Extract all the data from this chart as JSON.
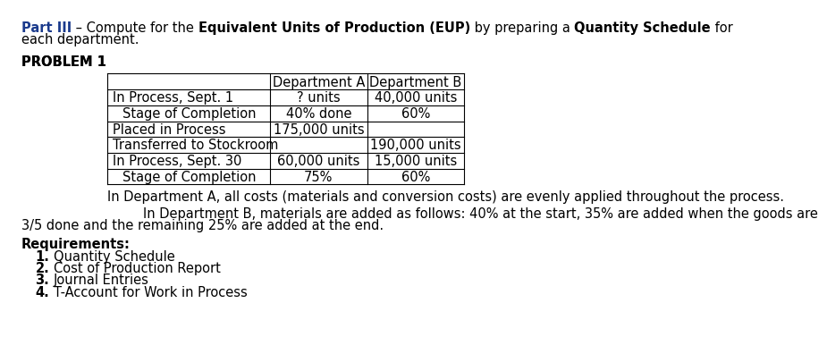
{
  "bg_color": "#ffffff",
  "text_color": "#000000",
  "title_color": "#1a3a8c",
  "font_size": 10.5,
  "table_font_size": 10.5,
  "note_font_size": 10.5,
  "req_font_size": 10.5,
  "table_headers": [
    "",
    "Department A",
    "Department B"
  ],
  "table_rows": [
    [
      "In Process, Sept. 1",
      "? units",
      "40,000 units"
    ],
    [
      "indented|Stage of Completion",
      "40% done",
      "60%"
    ],
    [
      "Placed in Process",
      "175,000 units",
      ""
    ],
    [
      "Transferred to Stockroom",
      "",
      "190,000 units"
    ],
    [
      "In Process, Sept. 30",
      "60,000 units",
      "15,000 units"
    ],
    [
      "indented|Stage of Completion",
      "75%",
      "60%"
    ]
  ],
  "note1": "In Department A, all costs (materials and conversion costs) are evenly applied throughout the process.",
  "note2_line1": "In Department B, materials are added as follows: 40% at the start, 35% are added when the goods are",
  "note2_line2": "3/5 done and the remaining 25% are added at the end.",
  "req_label": "Requirements:",
  "requirements": [
    "Quantity Schedule",
    "Cost of Production Report",
    "Journal Entries",
    "T-Account for Work in Process"
  ]
}
